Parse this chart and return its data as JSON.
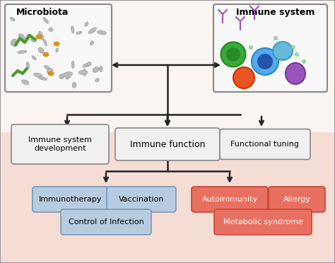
{
  "background_color": "#fde8e0",
  "top_background": "#ffffff",
  "box_white": "#f5f5f5",
  "box_blue": "#c8d8e8",
  "box_red": "#e8715a",
  "border_color": "#555555",
  "arrow_color": "#222222",
  "title": "",
  "microbiota_label": "Microbiota",
  "immune_label": "Immune system",
  "immune_function": "Immune function",
  "immune_dev": "Immune system\ndevelopment",
  "functional_tuning": "Functional tuning",
  "immunotherapy": "Immunotherapy",
  "vaccination": "Vaccination",
  "control_infection": "Control of Infection",
  "autoimmunity": "Autoimmunity",
  "allergy": "Allergy",
  "metabolic": "Metabolic syndrome"
}
